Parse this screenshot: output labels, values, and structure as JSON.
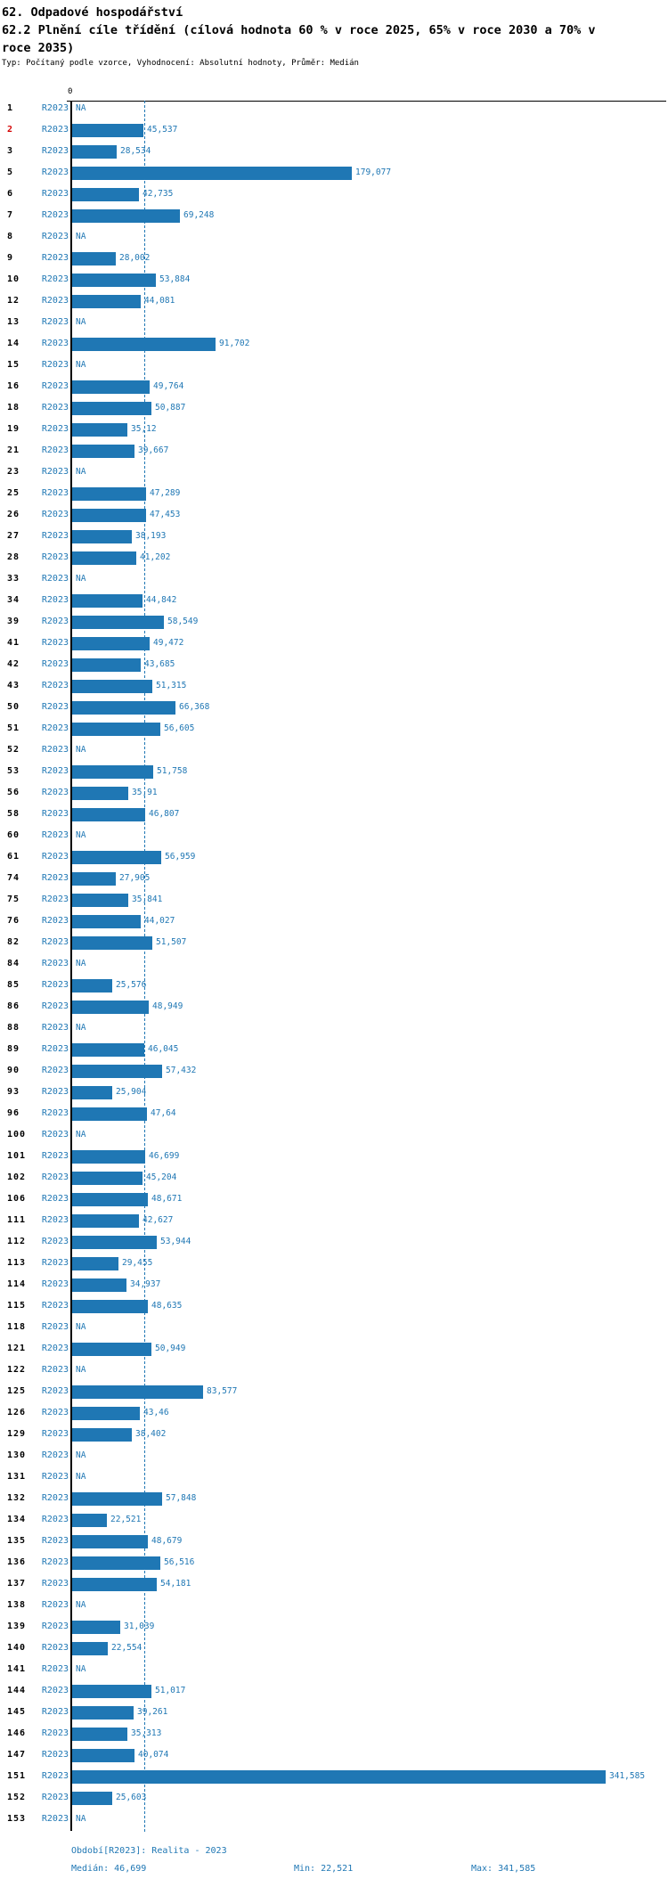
{
  "page": {
    "title1": "62. Odpadové hospodářství",
    "title2": "62.2 Plnění cíle třídění (cílová hodnota 60 % v roce 2025, 65% v roce 2030 a 70% v roce 2035)",
    "subtitle": "Typ: Počítaný podle vzorce, Vyhodnocení: Absolutní hodnoty, Průměr: Medián"
  },
  "colors": {
    "bar": "#1f77b4",
    "text_blue": "#1f77b4",
    "highlight_red": "#d40000",
    "axis_black": "#000000"
  },
  "chart_data": {
    "type": "bar",
    "orientation": "horizontal",
    "series_label": "R2023",
    "axis_zero_label": "0",
    "na_label": "NA",
    "highlighted_row_id": "2",
    "median_value": 46.699,
    "min_value": 22.521,
    "max_value": 341.585,
    "xlim": [
      0,
      381
    ],
    "grid": "median-dashed-line-only",
    "rows": [
      {
        "id": "1",
        "label": "NA",
        "value": null
      },
      {
        "id": "2",
        "label": "45,537",
        "value": 45.537
      },
      {
        "id": "3",
        "label": "28,534",
        "value": 28.534
      },
      {
        "id": "5",
        "label": "179,077",
        "value": 179.077
      },
      {
        "id": "6",
        "label": "42,735",
        "value": 42.735
      },
      {
        "id": "7",
        "label": "69,248",
        "value": 69.248
      },
      {
        "id": "8",
        "label": "NA",
        "value": null
      },
      {
        "id": "9",
        "label": "28,002",
        "value": 28.002
      },
      {
        "id": "10",
        "label": "53,884",
        "value": 53.884
      },
      {
        "id": "12",
        "label": "44,081",
        "value": 44.081
      },
      {
        "id": "13",
        "label": "NA",
        "value": null
      },
      {
        "id": "14",
        "label": "91,702",
        "value": 91.702
      },
      {
        "id": "15",
        "label": "NA",
        "value": null
      },
      {
        "id": "16",
        "label": "49,764",
        "value": 49.764
      },
      {
        "id": "18",
        "label": "50,887",
        "value": 50.887
      },
      {
        "id": "19",
        "label": "35,12",
        "value": 35.12
      },
      {
        "id": "21",
        "label": "39,667",
        "value": 39.667
      },
      {
        "id": "23",
        "label": "NA",
        "value": null
      },
      {
        "id": "25",
        "label": "47,289",
        "value": 47.289
      },
      {
        "id": "26",
        "label": "47,453",
        "value": 47.453
      },
      {
        "id": "27",
        "label": "38,193",
        "value": 38.193
      },
      {
        "id": "28",
        "label": "41,202",
        "value": 41.202
      },
      {
        "id": "33",
        "label": "NA",
        "value": null
      },
      {
        "id": "34",
        "label": "44,842",
        "value": 44.842
      },
      {
        "id": "39",
        "label": "58,549",
        "value": 58.549
      },
      {
        "id": "41",
        "label": "49,472",
        "value": 49.472
      },
      {
        "id": "42",
        "label": "43,685",
        "value": 43.685
      },
      {
        "id": "43",
        "label": "51,315",
        "value": 51.315
      },
      {
        "id": "50",
        "label": "66,368",
        "value": 66.368
      },
      {
        "id": "51",
        "label": "56,605",
        "value": 56.605
      },
      {
        "id": "52",
        "label": "NA",
        "value": null
      },
      {
        "id": "53",
        "label": "51,758",
        "value": 51.758
      },
      {
        "id": "56",
        "label": "35,91",
        "value": 35.91
      },
      {
        "id": "58",
        "label": "46,807",
        "value": 46.807
      },
      {
        "id": "60",
        "label": "NA",
        "value": null
      },
      {
        "id": "61",
        "label": "56,959",
        "value": 56.959
      },
      {
        "id": "74",
        "label": "27,905",
        "value": 27.905
      },
      {
        "id": "75",
        "label": "35,841",
        "value": 35.841
      },
      {
        "id": "76",
        "label": "44,027",
        "value": 44.027
      },
      {
        "id": "82",
        "label": "51,507",
        "value": 51.507
      },
      {
        "id": "84",
        "label": "NA",
        "value": null
      },
      {
        "id": "85",
        "label": "25,576",
        "value": 25.576
      },
      {
        "id": "86",
        "label": "48,949",
        "value": 48.949
      },
      {
        "id": "88",
        "label": "NA",
        "value": null
      },
      {
        "id": "89",
        "label": "46,045",
        "value": 46.045
      },
      {
        "id": "90",
        "label": "57,432",
        "value": 57.432
      },
      {
        "id": "93",
        "label": "25,904",
        "value": 25.904
      },
      {
        "id": "96",
        "label": "47,64",
        "value": 47.64
      },
      {
        "id": "100",
        "label": "NA",
        "value": null
      },
      {
        "id": "101",
        "label": "46,699",
        "value": 46.699
      },
      {
        "id": "102",
        "label": "45,204",
        "value": 45.204
      },
      {
        "id": "106",
        "label": "48,671",
        "value": 48.671
      },
      {
        "id": "111",
        "label": "42,627",
        "value": 42.627
      },
      {
        "id": "112",
        "label": "53,944",
        "value": 53.944
      },
      {
        "id": "113",
        "label": "29,455",
        "value": 29.455
      },
      {
        "id": "114",
        "label": "34,937",
        "value": 34.937
      },
      {
        "id": "115",
        "label": "48,635",
        "value": 48.635
      },
      {
        "id": "118",
        "label": "NA",
        "value": null
      },
      {
        "id": "121",
        "label": "50,949",
        "value": 50.949
      },
      {
        "id": "122",
        "label": "NA",
        "value": null
      },
      {
        "id": "125",
        "label": "83,577",
        "value": 83.577
      },
      {
        "id": "126",
        "label": "43,46",
        "value": 43.46
      },
      {
        "id": "129",
        "label": "38,402",
        "value": 38.402
      },
      {
        "id": "130",
        "label": "NA",
        "value": null
      },
      {
        "id": "131",
        "label": "NA",
        "value": null
      },
      {
        "id": "132",
        "label": "57,848",
        "value": 57.848
      },
      {
        "id": "134",
        "label": "22,521",
        "value": 22.521
      },
      {
        "id": "135",
        "label": "48,679",
        "value": 48.679
      },
      {
        "id": "136",
        "label": "56,516",
        "value": 56.516
      },
      {
        "id": "137",
        "label": "54,181",
        "value": 54.181
      },
      {
        "id": "138",
        "label": "NA",
        "value": null
      },
      {
        "id": "139",
        "label": "31,039",
        "value": 31.039
      },
      {
        "id": "140",
        "label": "22,554",
        "value": 22.554
      },
      {
        "id": "141",
        "label": "NA",
        "value": null
      },
      {
        "id": "144",
        "label": "51,017",
        "value": 51.017
      },
      {
        "id": "145",
        "label": "39,261",
        "value": 39.261
      },
      {
        "id": "146",
        "label": "35,313",
        "value": 35.313
      },
      {
        "id": "147",
        "label": "40,074",
        "value": 40.074
      },
      {
        "id": "151",
        "label": "341,585",
        "value": 341.585
      },
      {
        "id": "152",
        "label": "25,603",
        "value": 25.603
      },
      {
        "id": "153",
        "label": "NA",
        "value": null
      }
    ],
    "footer": {
      "period": "Období[R2023]: Realita - 2023",
      "median": "Medián: 46,699",
      "min": "Min: 22,521",
      "max": "Max: 341,585"
    }
  }
}
